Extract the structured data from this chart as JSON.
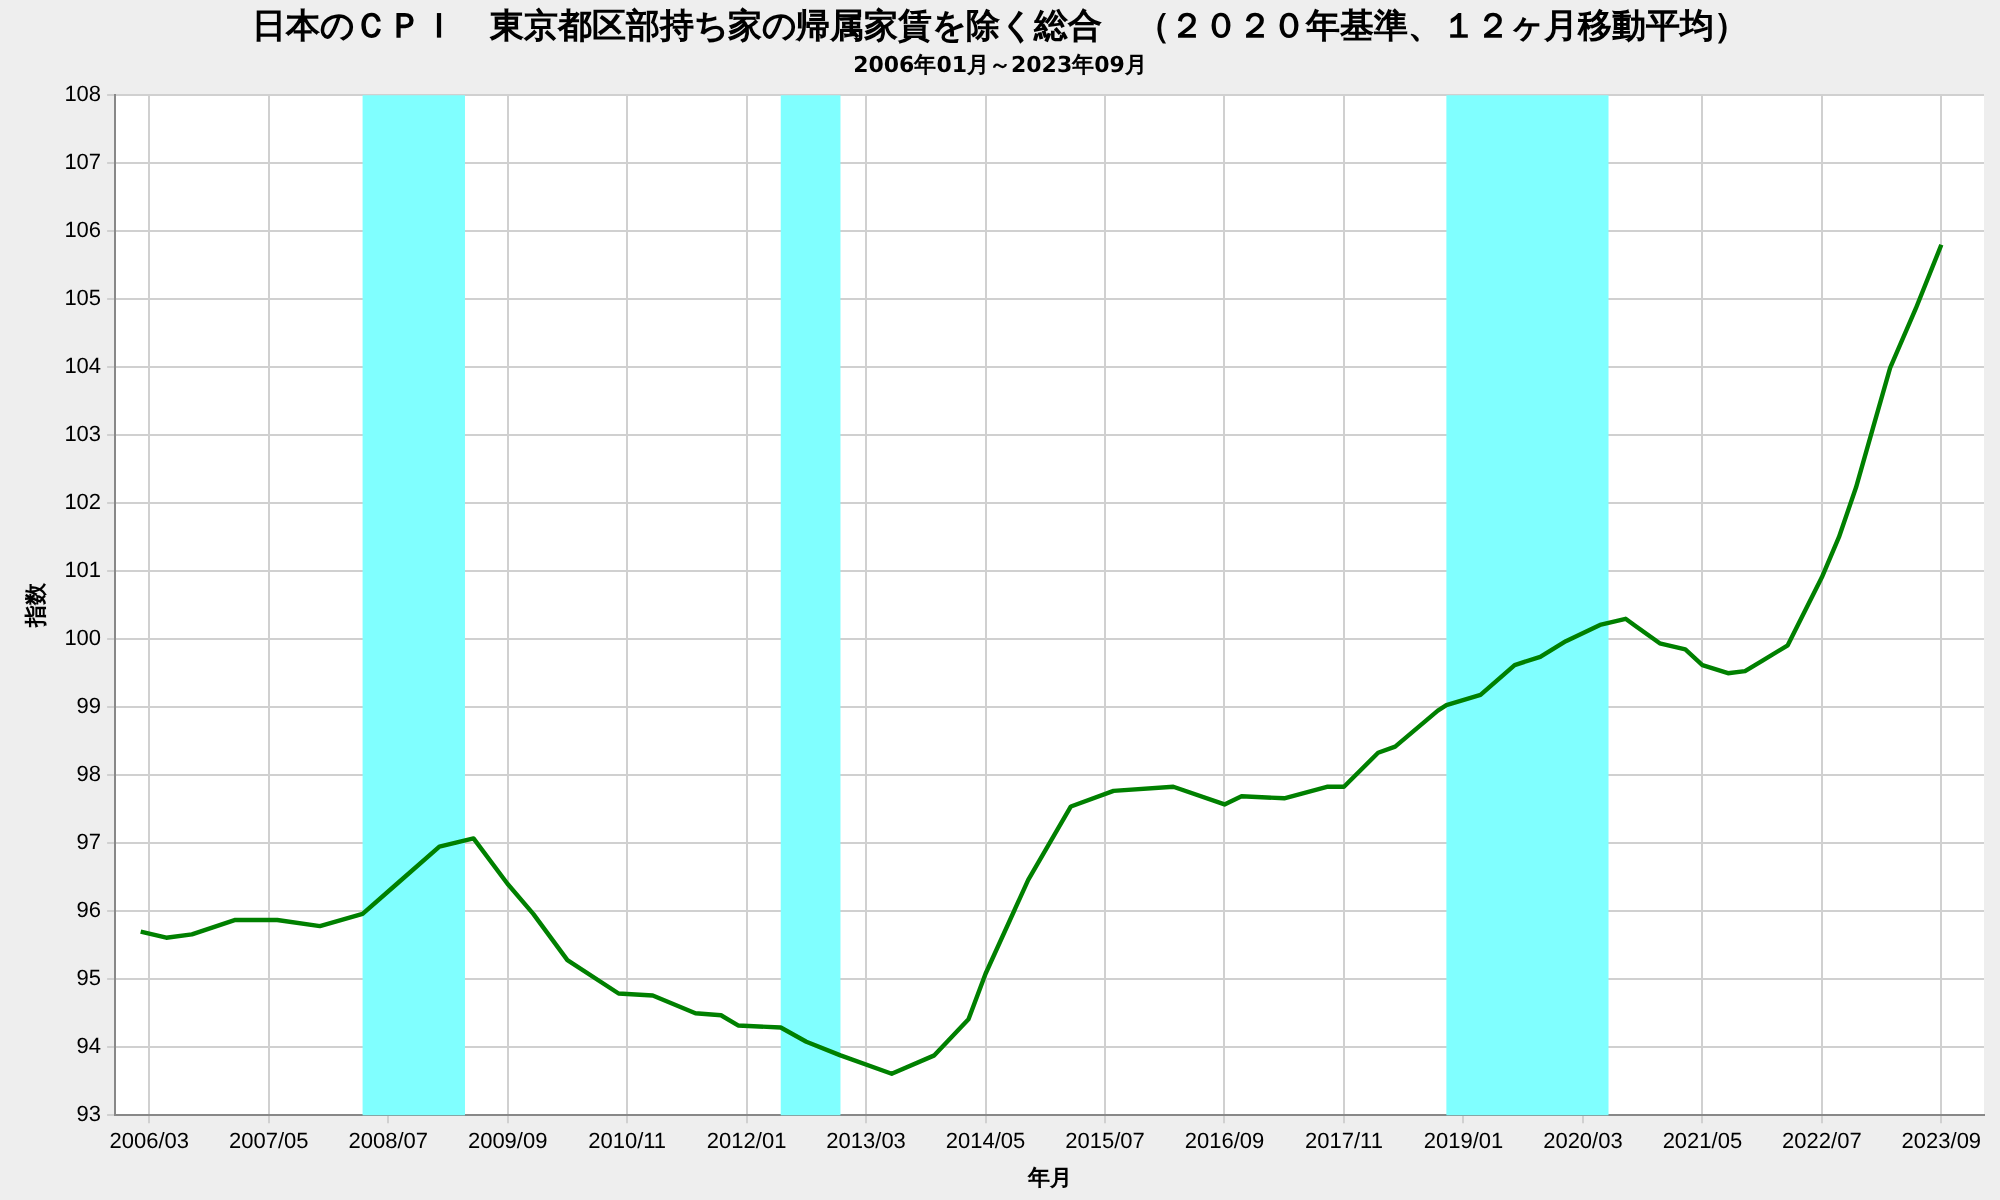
{
  "chart_data": {
    "type": "line",
    "title": "日本のＣＰＩ　東京都区部持ち家の帰属家賃を除く総合　（２０２０年基準、１２ヶ月移動平均）",
    "subtitle": "2006年01月～2023年09月",
    "xlabel": "年月",
    "ylabel": "指数",
    "x": [
      "2006-02",
      "2006-05",
      "2006-08",
      "2007-01",
      "2007-06",
      "2007-11",
      "2008-04",
      "2008-08",
      "2009-01",
      "2009-05",
      "2009-09",
      "2009-12",
      "2010-04",
      "2010-10",
      "2011-02",
      "2011-07",
      "2011-10",
      "2011-12",
      "2012-05",
      "2012-08",
      "2012-12",
      "2013-06",
      "2013-11",
      "2014-03",
      "2014-05",
      "2014-10",
      "2015-03",
      "2015-08",
      "2016-03",
      "2016-09",
      "2016-11",
      "2017-04",
      "2017-09",
      "2017-11",
      "2018-03",
      "2018-05",
      "2018-10",
      "2018-11",
      "2019-03",
      "2019-07",
      "2019-10",
      "2020-01",
      "2020-05",
      "2020-08",
      "2020-09",
      "2020-12",
      "2021-03",
      "2021-05",
      "2021-08",
      "2021-10",
      "2021-12",
      "2022-03",
      "2022-07",
      "2022-09",
      "2022-11",
      "2023-01",
      "2023-03",
      "2023-06",
      "2023-09"
    ],
    "series": [
      {
        "color": "#008000",
        "values": [
          95.7,
          95.61,
          95.66,
          95.87,
          95.87,
          95.78,
          95.96,
          96.4,
          96.95,
          97.07,
          96.4,
          95.96,
          95.28,
          94.79,
          94.76,
          94.5,
          94.47,
          94.32,
          94.29,
          94.08,
          93.88,
          93.61,
          93.88,
          94.41,
          95.08,
          96.46,
          97.54,
          97.77,
          97.83,
          97.57,
          97.69,
          97.66,
          97.83,
          97.83,
          98.33,
          98.42,
          98.95,
          99.03,
          99.18,
          99.62,
          99.74,
          99.97,
          100.21,
          100.3,
          100.21,
          99.94,
          99.85,
          99.62,
          99.5,
          99.53,
          99.68,
          99.91,
          100.91,
          101.5,
          102.23,
          103.11,
          103.99,
          104.86,
          105.8
        ]
      }
    ],
    "xlim": [
      "2005-11",
      "2024-02"
    ],
    "xticks": [
      {
        "value": "2006-03",
        "label": "2006/03"
      },
      {
        "value": "2007-05",
        "label": "2007/05"
      },
      {
        "value": "2008-07",
        "label": "2008/07"
      },
      {
        "value": "2009-09",
        "label": "2009/09"
      },
      {
        "value": "2010-11",
        "label": "2010/11"
      },
      {
        "value": "2012-01",
        "label": "2012/01"
      },
      {
        "value": "2013-03",
        "label": "2013/03"
      },
      {
        "value": "2014-05",
        "label": "2014/05"
      },
      {
        "value": "2015-07",
        "label": "2015/07"
      },
      {
        "value": "2016-09",
        "label": "2016/09"
      },
      {
        "value": "2017-11",
        "label": "2017/11"
      },
      {
        "value": "2019-01",
        "label": "2019/01"
      },
      {
        "value": "2020-03",
        "label": "2020/03"
      },
      {
        "value": "2021-05",
        "label": "2021/05"
      },
      {
        "value": "2022-07",
        "label": "2022/07"
      },
      {
        "value": "2023-09",
        "label": "2023/09"
      }
    ],
    "ylim": [
      93,
      108
    ],
    "yticks": [
      93,
      94,
      95,
      96,
      97,
      98,
      99,
      100,
      101,
      102,
      103,
      104,
      105,
      106,
      107,
      108
    ],
    "bands": [
      {
        "axis": "x",
        "from": "2008-04",
        "to": "2009-04",
        "color": "#80ffff"
      },
      {
        "axis": "x",
        "from": "2012-05",
        "to": "2012-12",
        "color": "#80ffff"
      },
      {
        "axis": "x",
        "from": "2018-11",
        "to": "2020-06",
        "color": "#80ffff"
      }
    ],
    "grid": true,
    "legend": false,
    "marker": "none",
    "line_style": "solid"
  }
}
